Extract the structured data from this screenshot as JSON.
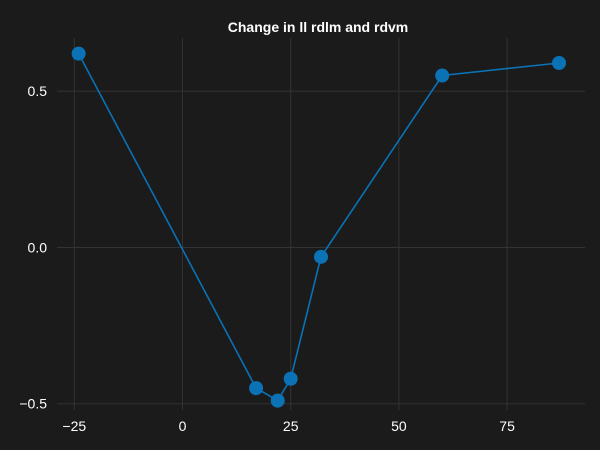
{
  "chart_data": {
    "type": "line",
    "title": "Change in ll rdlm and rdvm",
    "xlabel": "",
    "ylabel": "",
    "xlim": [
      -29,
      93
    ],
    "ylim": [
      -0.52,
      0.67
    ],
    "grid": true,
    "x_ticks": [
      -25,
      0,
      25,
      50,
      75
    ],
    "x_tick_labels": [
      "−25",
      "0",
      "25",
      "50",
      "75"
    ],
    "y_ticks": [
      -0.5,
      0.0,
      0.5
    ],
    "y_tick_labels": [
      "−0.5",
      "0.0",
      "0.5"
    ],
    "series": [
      {
        "name": "",
        "color": "#0a72b5",
        "x": [
          -24,
          17,
          22,
          25,
          32,
          60,
          87
        ],
        "y": [
          0.62,
          -0.45,
          -0.49,
          -0.42,
          -0.03,
          0.55,
          0.59
        ]
      }
    ]
  }
}
